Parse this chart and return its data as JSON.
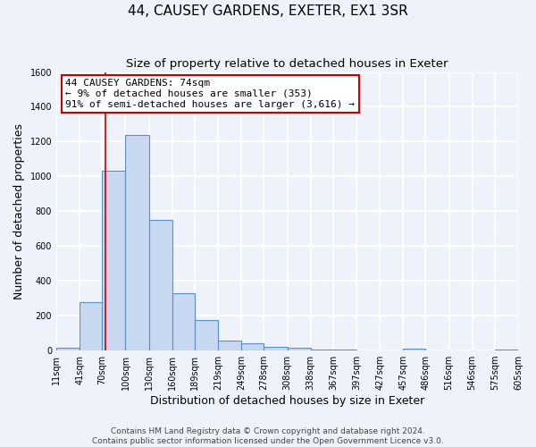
{
  "title": "44, CAUSEY GARDENS, EXETER, EX1 3SR",
  "subtitle": "Size of property relative to detached houses in Exeter",
  "xlabel": "Distribution of detached houses by size in Exeter",
  "ylabel": "Number of detached properties",
  "bin_edges": [
    11,
    41,
    70,
    100,
    130,
    160,
    189,
    219,
    249,
    278,
    308,
    338,
    367,
    397,
    427,
    457,
    486,
    516,
    546,
    575,
    605
  ],
  "bin_counts": [
    15,
    280,
    1035,
    1240,
    750,
    330,
    175,
    55,
    40,
    20,
    15,
    5,
    5,
    0,
    0,
    10,
    0,
    0,
    0,
    5
  ],
  "bar_facecolor": "#c8d8f0",
  "bar_edgecolor": "#5b8fc9",
  "property_line_x": 74,
  "property_line_color": "#cc0000",
  "annotation_text_line1": "44 CAUSEY GARDENS: 74sqm",
  "annotation_text_line2": "← 9% of detached houses are smaller (353)",
  "annotation_text_line3": "91% of semi-detached houses are larger (3,616) →",
  "annotation_box_facecolor": "#ffffff",
  "annotation_box_edgecolor": "#cc0000",
  "ylim": [
    0,
    1600
  ],
  "tick_labels": [
    "11sqm",
    "41sqm",
    "70sqm",
    "100sqm",
    "130sqm",
    "160sqm",
    "189sqm",
    "219sqm",
    "249sqm",
    "278sqm",
    "308sqm",
    "338sqm",
    "367sqm",
    "397sqm",
    "427sqm",
    "457sqm",
    "486sqm",
    "516sqm",
    "546sqm",
    "575sqm",
    "605sqm"
  ],
  "yticks": [
    0,
    200,
    400,
    600,
    800,
    1000,
    1200,
    1400,
    1600
  ],
  "footer_line1": "Contains HM Land Registry data © Crown copyright and database right 2024.",
  "footer_line2": "Contains public sector information licensed under the Open Government Licence v3.0.",
  "background_color": "#eef2fb",
  "grid_color": "#ffffff",
  "title_fontsize": 11,
  "subtitle_fontsize": 9.5,
  "label_fontsize": 9,
  "tick_fontsize": 7,
  "annotation_fontsize": 8,
  "footer_fontsize": 6.5
}
